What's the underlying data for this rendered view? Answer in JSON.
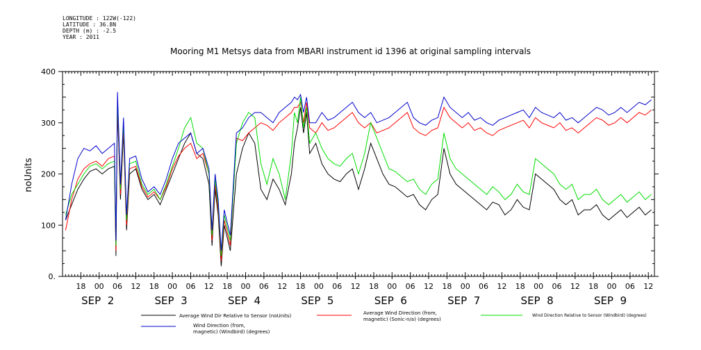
{
  "meta": {
    "longitude": "LONGITUDE : 122W(-122)",
    "latitude": "LATITUDE : 36.8N",
    "depth": "DEPTH (m) : -2.5",
    "year": "YEAR : 2011"
  },
  "chart_data": {
    "type": "line",
    "title": "Mooring M1 Metsys data from MBARI instrument id 1396 at original sampling intervals",
    "ylabel": "noUnits",
    "ylim": [
      0,
      400
    ],
    "y_ticks": [
      "0.",
      "100",
      "200",
      "300",
      "400"
    ],
    "xlim": [
      12,
      206
    ],
    "x_unit": "hours since SEP 2 00:00",
    "x_hour_ticks": [
      {
        "t": 18,
        "label": "18"
      },
      {
        "t": 24,
        "label": "00"
      },
      {
        "t": 30,
        "label": "06"
      },
      {
        "t": 36,
        "label": "12"
      },
      {
        "t": 42,
        "label": "18"
      },
      {
        "t": 48,
        "label": "00"
      },
      {
        "t": 54,
        "label": "06"
      },
      {
        "t": 60,
        "label": "12"
      },
      {
        "t": 66,
        "label": "18"
      },
      {
        "t": 72,
        "label": "00"
      },
      {
        "t": 78,
        "label": "06"
      },
      {
        "t": 84,
        "label": "12"
      },
      {
        "t": 90,
        "label": "18"
      },
      {
        "t": 96,
        "label": "00"
      },
      {
        "t": 102,
        "label": "06"
      },
      {
        "t": 108,
        "label": "12"
      },
      {
        "t": 114,
        "label": "18"
      },
      {
        "t": 120,
        "label": "00"
      },
      {
        "t": 126,
        "label": "06"
      },
      {
        "t": 132,
        "label": "12"
      },
      {
        "t": 138,
        "label": "18"
      },
      {
        "t": 144,
        "label": "00"
      },
      {
        "t": 150,
        "label": "06"
      },
      {
        "t": 156,
        "label": "12"
      },
      {
        "t": 162,
        "label": "18"
      },
      {
        "t": 168,
        "label": "00"
      },
      {
        "t": 174,
        "label": "06"
      },
      {
        "t": 180,
        "label": "12"
      },
      {
        "t": 186,
        "label": "18"
      },
      {
        "t": 192,
        "label": "00"
      },
      {
        "t": 198,
        "label": "06"
      },
      {
        "t": 204,
        "label": "12"
      }
    ],
    "day_labels": [
      {
        "t": 24,
        "label": "SEP  2"
      },
      {
        "t": 48,
        "label": "SEP  3"
      },
      {
        "t": 72,
        "label": "SEP  4"
      },
      {
        "t": 96,
        "label": "SEP  5"
      },
      {
        "t": 120,
        "label": "SEP  6"
      },
      {
        "t": 144,
        "label": "SEP  7"
      },
      {
        "t": 168,
        "label": "SEP  8"
      },
      {
        "t": 192,
        "label": "SEP  9"
      }
    ],
    "series": [
      {
        "name": "Average Wind Dir Relative to Sensor (noUnits)",
        "color": "#000000",
        "x": [
          13,
          15,
          17,
          19,
          21,
          23,
          25,
          27,
          29,
          29.5,
          30,
          31,
          32,
          33,
          34,
          36,
          38,
          40,
          42,
          44,
          46,
          48,
          50,
          52,
          54,
          56,
          58,
          60,
          61,
          62,
          63,
          64,
          65,
          67,
          69,
          71,
          73,
          75,
          77,
          79,
          81,
          83,
          85,
          87,
          88,
          89,
          90,
          91,
          92,
          93,
          95,
          97,
          99,
          101,
          103,
          105,
          107,
          109,
          111,
          113,
          115,
          117,
          119,
          121,
          123,
          125,
          127,
          129,
          131,
          133,
          135,
          137,
          139,
          141,
          143,
          145,
          147,
          149,
          151,
          153,
          155,
          157,
          159,
          161,
          163,
          165,
          167,
          169,
          171,
          173,
          175,
          177,
          179,
          181,
          183,
          185,
          187,
          189,
          191,
          193,
          195,
          197,
          199,
          201,
          203,
          205
        ],
        "values": [
          110,
          140,
          170,
          190,
          205,
          210,
          200,
          210,
          215,
          40,
          330,
          150,
          280,
          90,
          200,
          210,
          170,
          150,
          160,
          140,
          170,
          200,
          230,
          260,
          280,
          240,
          230,
          180,
          60,
          170,
          120,
          20,
          100,
          50,
          200,
          250,
          280,
          260,
          170,
          150,
          190,
          170,
          140,
          200,
          260,
          290,
          330,
          280,
          320,
          240,
          260,
          220,
          200,
          190,
          185,
          200,
          210,
          170,
          210,
          260,
          230,
          200,
          180,
          175,
          165,
          155,
          160,
          140,
          130,
          150,
          160,
          250,
          200,
          180,
          170,
          160,
          150,
          140,
          130,
          145,
          140,
          120,
          130,
          150,
          135,
          130,
          200,
          190,
          180,
          170,
          150,
          140,
          150,
          120,
          130,
          130,
          140,
          120,
          110,
          120,
          130,
          115,
          125,
          135,
          120,
          130
        ]
      },
      {
        "name": "Average Wind Direction (from, magnetic) (Sonic-n/a) (degrees)",
        "color": "#ff0000",
        "x": [
          13,
          15,
          17,
          19,
          21,
          23,
          25,
          27,
          29,
          29.5,
          30,
          31,
          32,
          33,
          34,
          36,
          38,
          40,
          42,
          44,
          46,
          48,
          50,
          52,
          54,
          56,
          58,
          60,
          61,
          62,
          63,
          64,
          65,
          67,
          69,
          71,
          73,
          75,
          77,
          79,
          81,
          83,
          85,
          87,
          88,
          89,
          90,
          91,
          92,
          93,
          95,
          97,
          99,
          101,
          103,
          105,
          107,
          109,
          111,
          113,
          115,
          117,
          119,
          121,
          123,
          125,
          127,
          129,
          131,
          133,
          135,
          137,
          139,
          141,
          143,
          145,
          147,
          149,
          151,
          153,
          155,
          157,
          159,
          161,
          163,
          165,
          167,
          169,
          171,
          173,
          175,
          177,
          179,
          181,
          183,
          185,
          187,
          189,
          191,
          193,
          195,
          197,
          199,
          201,
          203,
          205
        ],
        "values": [
          90,
          150,
          190,
          210,
          220,
          225,
          215,
          230,
          235,
          50,
          340,
          160,
          290,
          100,
          210,
          215,
          175,
          155,
          165,
          150,
          175,
          210,
          235,
          250,
          260,
          230,
          240,
          200,
          70,
          180,
          130,
          30,
          110,
          60,
          270,
          265,
          280,
          290,
          300,
          295,
          285,
          300,
          310,
          320,
          330,
          330,
          340,
          300,
          340,
          290,
          280,
          300,
          285,
          290,
          300,
          310,
          320,
          300,
          290,
          300,
          280,
          285,
          290,
          300,
          310,
          320,
          290,
          280,
          275,
          285,
          290,
          330,
          310,
          300,
          290,
          300,
          285,
          290,
          280,
          275,
          285,
          290,
          295,
          300,
          305,
          290,
          310,
          300,
          295,
          290,
          300,
          285,
          290,
          280,
          290,
          300,
          310,
          305,
          295,
          300,
          310,
          300,
          310,
          320,
          315,
          325
        ]
      },
      {
        "name": "Wind Direction Relative to Sensor (Windbird) (degrees)",
        "color": "#00dd00",
        "x": [
          13,
          15,
          17,
          19,
          21,
          23,
          25,
          27,
          29,
          29.5,
          30,
          31,
          32,
          33,
          34,
          36,
          38,
          40,
          42,
          44,
          46,
          48,
          50,
          52,
          54,
          56,
          58,
          60,
          61,
          62,
          63,
          64,
          65,
          67,
          69,
          71,
          73,
          75,
          77,
          79,
          81,
          83,
          85,
          87,
          88,
          89,
          90,
          91,
          92,
          93,
          95,
          97,
          99,
          101,
          103,
          105,
          107,
          109,
          111,
          113,
          115,
          117,
          119,
          121,
          123,
          125,
          127,
          129,
          131,
          133,
          135,
          137,
          139,
          141,
          143,
          145,
          147,
          149,
          151,
          153,
          155,
          157,
          159,
          161,
          163,
          165,
          167,
          169,
          171,
          173,
          175,
          177,
          179,
          181,
          183,
          185,
          187,
          189,
          191,
          193,
          195,
          197,
          199,
          201,
          203,
          205
        ],
        "values": [
          120,
          160,
          180,
          200,
          215,
          220,
          210,
          220,
          225,
          60,
          350,
          170,
          300,
          110,
          220,
          225,
          180,
          160,
          170,
          150,
          180,
          215,
          250,
          290,
          310,
          260,
          250,
          200,
          80,
          190,
          140,
          40,
          120,
          70,
          260,
          300,
          320,
          310,
          220,
          180,
          230,
          200,
          150,
          240,
          320,
          300,
          350,
          290,
          330,
          260,
          280,
          250,
          230,
          220,
          215,
          230,
          240,
          200,
          240,
          300,
          270,
          240,
          210,
          205,
          195,
          185,
          190,
          170,
          160,
          180,
          190,
          280,
          230,
          210,
          200,
          190,
          180,
          170,
          160,
          175,
          165,
          150,
          160,
          180,
          165,
          160,
          230,
          220,
          210,
          200,
          180,
          170,
          180,
          150,
          160,
          160,
          170,
          150,
          140,
          150,
          160,
          145,
          155,
          165,
          150,
          160
        ]
      },
      {
        "name": "Wind Direction (from, magnetic) (Windbird) (degrees)",
        "color": "#0000cc",
        "x": [
          13,
          15,
          17,
          19,
          21,
          23,
          25,
          27,
          29,
          29.5,
          30,
          31,
          32,
          33,
          34,
          36,
          38,
          40,
          42,
          44,
          46,
          48,
          50,
          52,
          54,
          56,
          58,
          60,
          61,
          62,
          63,
          64,
          65,
          67,
          69,
          71,
          73,
          75,
          77,
          79,
          81,
          83,
          85,
          87,
          88,
          89,
          90,
          91,
          92,
          93,
          95,
          97,
          99,
          101,
          103,
          105,
          107,
          109,
          111,
          113,
          115,
          117,
          119,
          121,
          123,
          125,
          127,
          129,
          131,
          133,
          135,
          137,
          139,
          141,
          143,
          145,
          147,
          149,
          151,
          153,
          155,
          157,
          159,
          161,
          163,
          165,
          167,
          169,
          171,
          173,
          175,
          177,
          179,
          181,
          183,
          185,
          187,
          189,
          191,
          193,
          195,
          197,
          199,
          201,
          203,
          205
        ],
        "values": [
          110,
          180,
          230,
          250,
          245,
          255,
          240,
          250,
          260,
          70,
          360,
          180,
          310,
          120,
          230,
          235,
          190,
          165,
          175,
          160,
          190,
          230,
          260,
          270,
          280,
          240,
          250,
          210,
          90,
          200,
          150,
          50,
          130,
          80,
          280,
          290,
          310,
          320,
          320,
          310,
          300,
          320,
          330,
          340,
          350,
          345,
          355,
          320,
          350,
          300,
          300,
          320,
          305,
          310,
          320,
          330,
          340,
          320,
          310,
          320,
          300,
          305,
          310,
          320,
          330,
          340,
          310,
          300,
          295,
          305,
          310,
          350,
          330,
          320,
          310,
          320,
          305,
          310,
          300,
          295,
          305,
          310,
          315,
          320,
          325,
          310,
          330,
          320,
          315,
          310,
          320,
          305,
          310,
          300,
          310,
          320,
          330,
          325,
          315,
          320,
          330,
          320,
          330,
          340,
          335,
          345
        ]
      }
    ],
    "legend": [
      {
        "label": "Average Wind Dir Relative to Sensor (noUnits)",
        "color": "#000000"
      },
      {
        "label": "Average Wind Direction (from, magnetic) (Sonic-n/a) (degrees)",
        "color": "#ff0000"
      },
      {
        "label": "Wind Direction Relative to Sensor (Windbird) (degrees)",
        "color": "#00dd00"
      },
      {
        "label": "Wind Direction (from, magnetic) (Windbird) (degrees)",
        "color": "#0000cc"
      }
    ],
    "legend_text": {
      "l0": "Average Wind Dir Relative to Sensor (noUnits)",
      "l1a": "Average Wind Direction (from,",
      "l1b": "magnetic) (Sonic-n/a) (degrees)",
      "l2": "Wind Direction Relative to Sensor (Windbird) (degrees)",
      "l3a": "Wind Direction (from,",
      "l3b": "magnetic) (Windbird) (degrees)"
    },
    "grid": false
  }
}
